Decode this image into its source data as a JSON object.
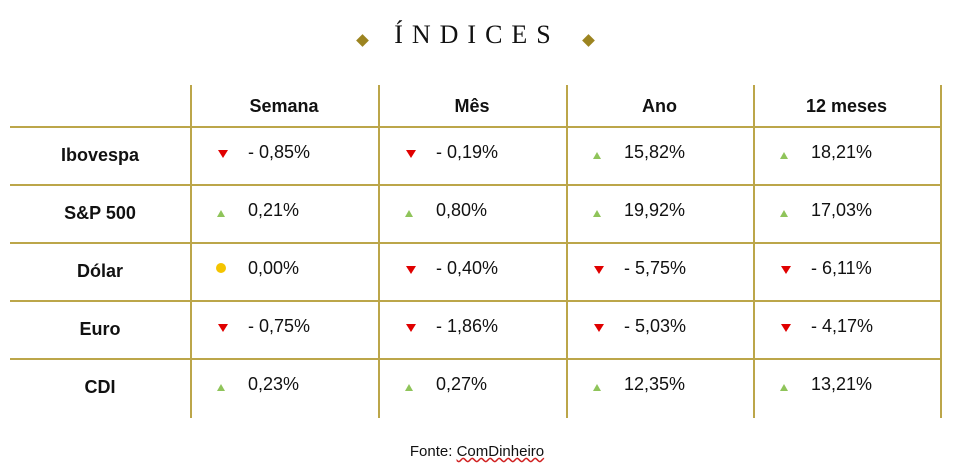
{
  "title": "ÍNDICES",
  "table": {
    "header": [
      "Semana",
      "Mês",
      "Ano",
      "12 meses"
    ],
    "rows": [
      [
        "Ibovespa",
        "- 0,85%",
        "- 0,19%",
        "15,82%",
        "18,21%"
      ],
      [
        "S&P 500",
        "0,21%",
        "0,80%",
        "19,92%",
        "17,03%"
      ],
      [
        "Dólar",
        "0,00%",
        "- 0,40%",
        "- 5,75%",
        "- 6,11%"
      ],
      [
        "Euro",
        "- 0,75%",
        "- 1,86%",
        "- 5,03%",
        "- 4,17%"
      ],
      [
        "CDI",
        "0,23%",
        "0,27%",
        "12,35%",
        "13,21%"
      ]
    ]
  },
  "source": {
    "label": "Fonte:",
    "name": "ComDinheiro"
  }
}
